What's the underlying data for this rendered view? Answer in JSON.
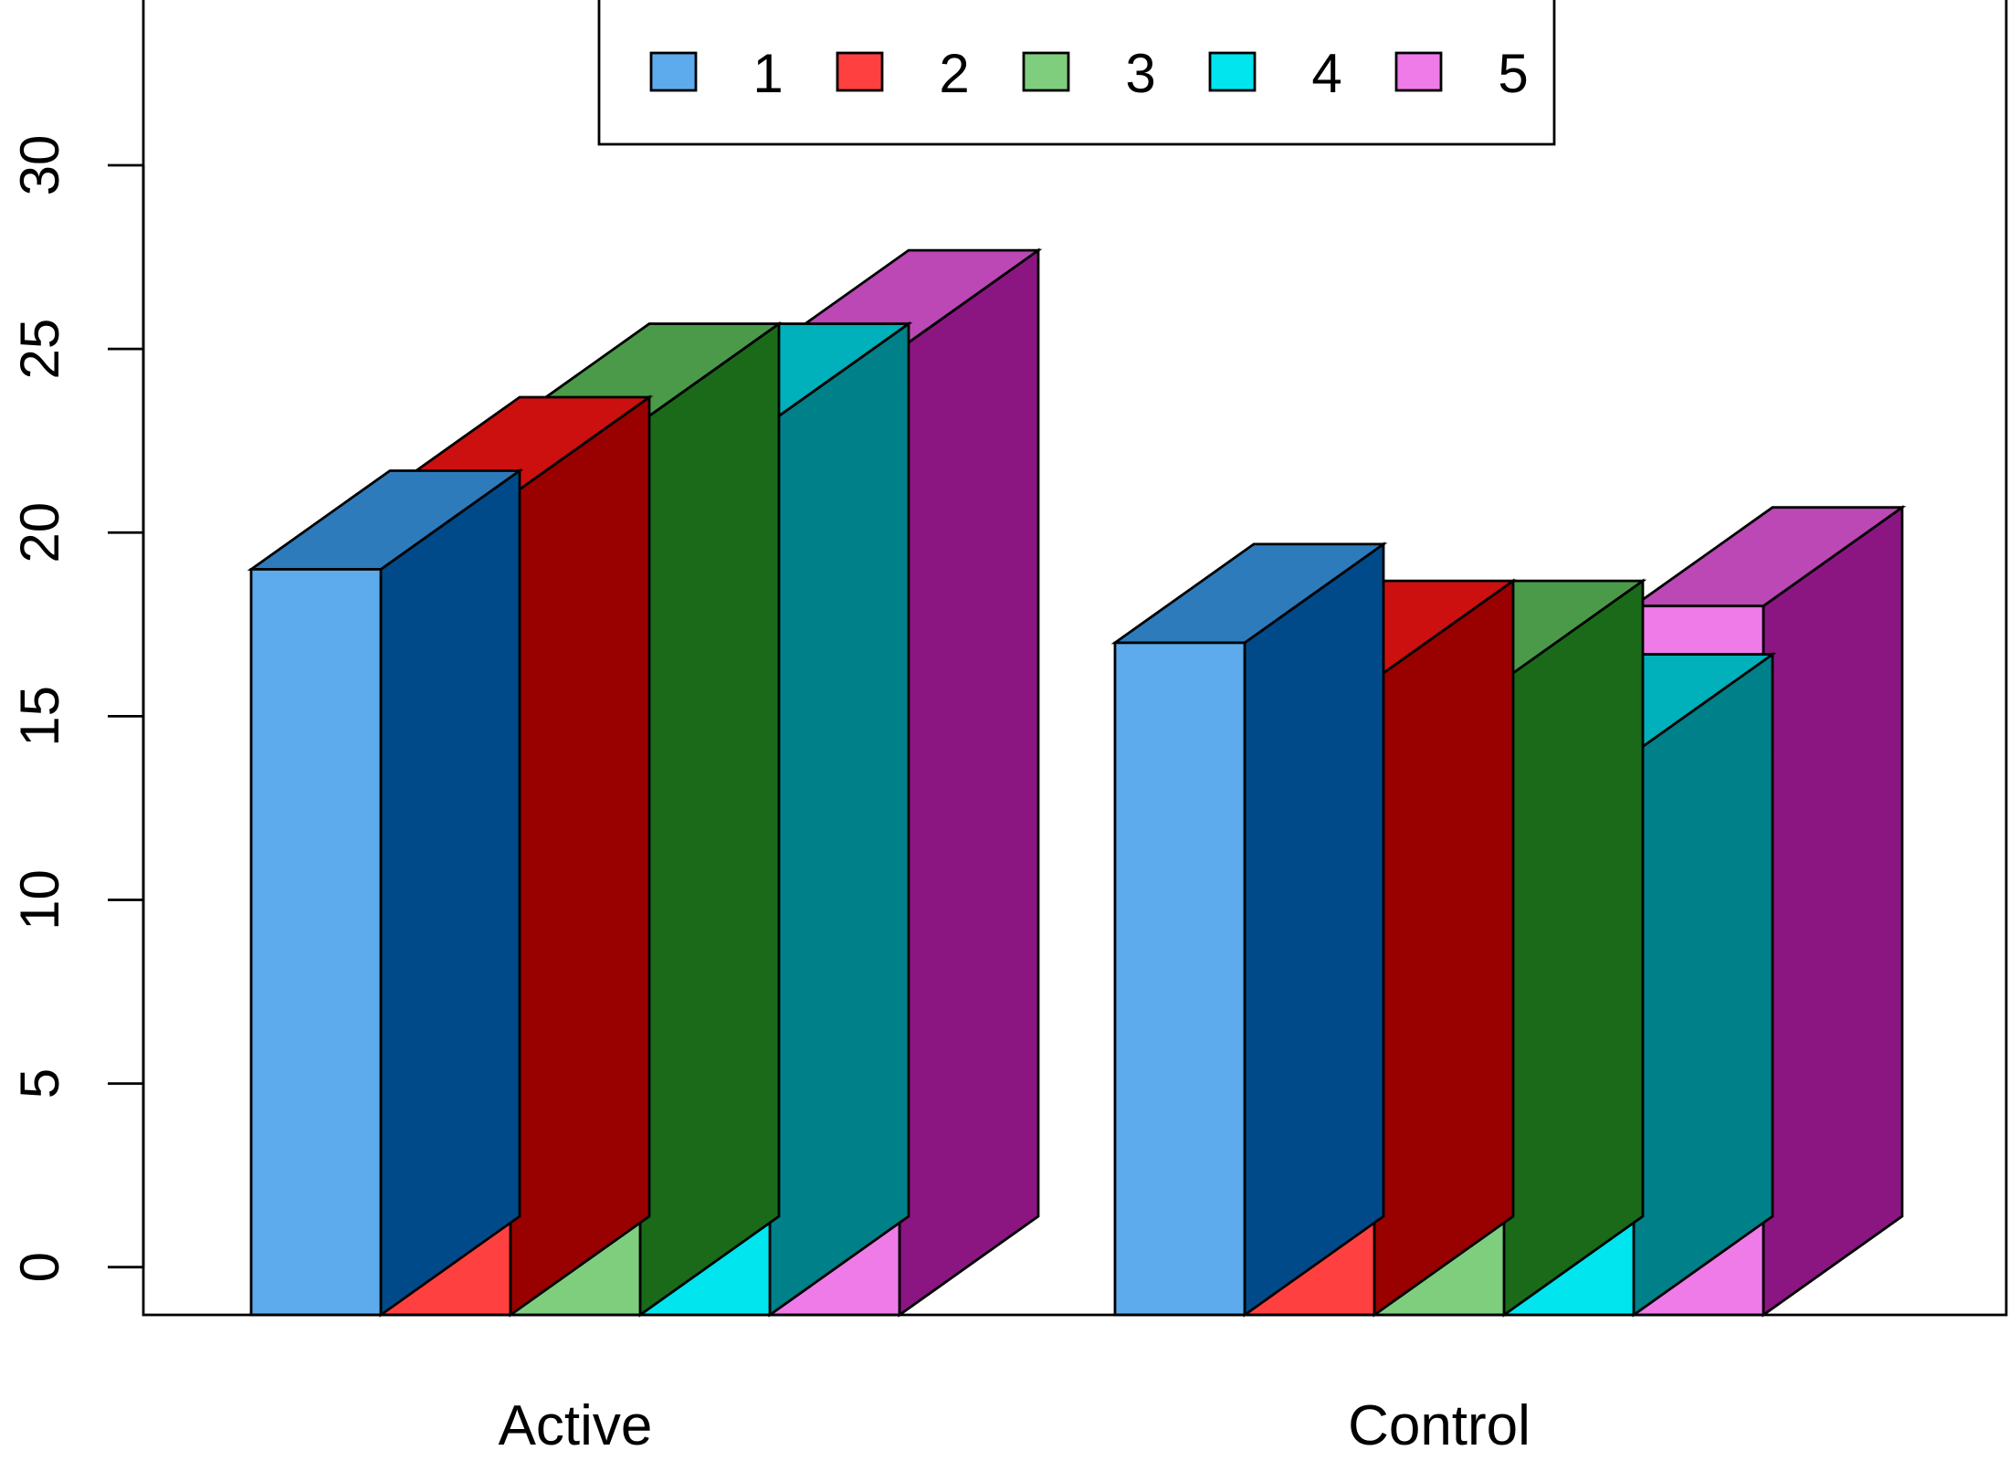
{
  "chart_data": {
    "type": "bar",
    "style": "3d-grouped",
    "categories": [
      "Active",
      "Control"
    ],
    "series": [
      {
        "name": "1",
        "values": [
          19,
          17
        ],
        "color": "#5DAAEC",
        "top_color": "#2E7BBC",
        "side_color": "#004A8A"
      },
      {
        "name": "2",
        "values": [
          21,
          16
        ],
        "color": "#FF4040",
        "top_color": "#CC1010",
        "side_color": "#990000"
      },
      {
        "name": "3",
        "values": [
          23,
          16
        ],
        "color": "#7ECE7E",
        "top_color": "#4A9A4A",
        "side_color": "#1A6A1A"
      },
      {
        "name": "4",
        "values": [
          23,
          14
        ],
        "color": "#00E5EE",
        "top_color": "#00B0BA",
        "side_color": "#008088"
      },
      {
        "name": "5",
        "values": [
          25,
          18
        ],
        "color": "#EE7BE8",
        "top_color": "#BB48B5",
        "side_color": "#8B1682"
      }
    ],
    "y_ticks": [
      "0",
      "5",
      "10",
      "15",
      "20",
      "25",
      "30"
    ],
    "ylim": [
      -1.3,
      34.5
    ],
    "legend": {
      "position": "top-center",
      "labels": [
        "1",
        "2",
        "3",
        "4",
        "5"
      ]
    },
    "grid": false,
    "title": "",
    "xlabel": "",
    "ylabel": ""
  }
}
